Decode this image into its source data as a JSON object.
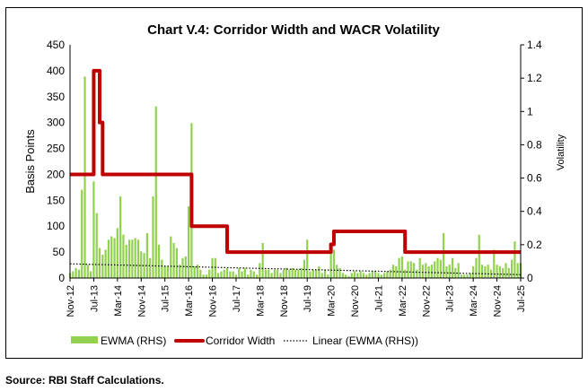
{
  "chart_data": {
    "type": "bar+line",
    "title": "Chart V.4: Corridor Width and WACR Volatility",
    "ylabel": "Basis Points",
    "y2label": "Volatility",
    "ylim": [
      0,
      450
    ],
    "yticks": [
      0,
      50,
      100,
      150,
      200,
      250,
      300,
      350,
      400,
      450
    ],
    "y2lim": [
      0,
      1.4
    ],
    "y2ticks": [
      "0",
      "0.2",
      "0.4",
      "0.6",
      "0.8",
      "1",
      "1.2",
      "1.4"
    ],
    "x_start": "2012-11",
    "x_end": "2025-07",
    "xticks": [
      "Nov-12",
      "Jul-13",
      "Mar-14",
      "Nov-14",
      "Jul-15",
      "Mar-16",
      "Nov-16",
      "Jul-17",
      "Mar-18",
      "Nov-18",
      "Jul-19",
      "Mar-20",
      "Nov-20",
      "Jul-21",
      "Mar-22",
      "Nov-22",
      "Jul-23",
      "Mar-24",
      "Nov-24",
      "Jul-25"
    ],
    "grid": false,
    "legend_position": "bottom",
    "series": [
      {
        "name": "EWMA (RHS)",
        "type": "bar",
        "axis": "right",
        "color": "#92d050",
        "values": [
          0.03,
          0.04,
          0.06,
          0.05,
          0.53,
          1.21,
          0.08,
          0.04,
          0.58,
          0.39,
          0.18,
          0.14,
          0.17,
          0.23,
          0.25,
          0.24,
          0.3,
          0.49,
          0.26,
          0.2,
          0.23,
          0.23,
          0.24,
          0.23,
          0.16,
          0.15,
          0.27,
          0.12,
          0.49,
          1.03,
          0.2,
          0.11,
          0.07,
          0.07,
          0.25,
          0.21,
          0.18,
          0.08,
          0.12,
          0.13,
          0.43,
          0.93,
          0.07,
          0.08,
          0.05,
          0.02,
          0.02,
          0.05,
          0.12,
          0.12,
          0.03,
          0.04,
          0.05,
          0.06,
          0.04,
          0.04,
          0.02,
          0.06,
          0.04,
          0.06,
          0.02,
          0.05,
          0.04,
          0.02,
          0.09,
          0.21,
          0.05,
          0.05,
          0.03,
          0.05,
          0.05,
          0.03,
          0.05,
          0.06,
          0.05,
          0.06,
          0.05,
          0.05,
          0.06,
          0.11,
          0.23,
          0.04,
          0.05,
          0.05,
          0.07,
          0.03,
          0.05,
          0.02,
          0.16,
          0.17,
          0.08,
          0.06,
          0.03,
          0.02,
          0.01,
          0.03,
          0.04,
          0.03,
          0.04,
          0.03,
          0.02,
          0.03,
          0.04,
          0.04,
          0.03,
          0.02,
          0.03,
          0.04,
          0.05,
          0.08,
          0.07,
          0.12,
          0.13,
          0.05,
          0.1,
          0.1,
          0.09,
          0.05,
          0.12,
          0.08,
          0.09,
          0.07,
          0.08,
          0.1,
          0.12,
          0.11,
          0.27,
          0.07,
          0.08,
          0.12,
          0.06,
          0.09,
          0.02,
          0.02,
          0.02,
          0.03,
          0.07,
          0.12,
          0.26,
          0.08,
          0.07,
          0.08,
          0.05,
          0.17,
          0.08,
          0.07,
          0.06,
          0.09,
          0.06,
          0.11,
          0.22,
          0.09,
          0.09
        ]
      },
      {
        "name": "Corridor Width",
        "type": "step",
        "axis": "left",
        "color": "#c00000",
        "steps": [
          {
            "from": "2012-11",
            "value": 200
          },
          {
            "from": "2013-07",
            "value": 400
          },
          {
            "from": "2013-09",
            "value": 300
          },
          {
            "from": "2013-10",
            "value": 200
          },
          {
            "from": "2016-04",
            "value": 100
          },
          {
            "from": "2017-04",
            "value": 50
          },
          {
            "from": "2020-03",
            "value": 65
          },
          {
            "from": "2020-04",
            "value": 90
          },
          {
            "from": "2022-04",
            "value": 50
          }
        ]
      },
      {
        "name": "Linear (EWMA (RHS))",
        "type": "trendline",
        "axis": "right",
        "color": "#000000",
        "start_value": 0.085,
        "end_value": 0.02
      }
    ]
  },
  "source": "Source: RBI Staff Calculations."
}
